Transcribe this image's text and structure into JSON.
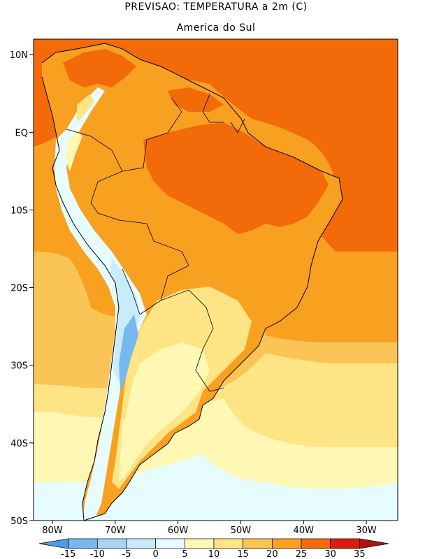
{
  "title": "PREVISAO: TEMPERATURA a 2m (C)",
  "subtitle": "America do Sul",
  "lat_labels": [
    {
      "lat": 10,
      "text": "10N"
    },
    {
      "lat": 0,
      "text": "EQ"
    },
    {
      "lat": -10,
      "text": "10S"
    },
    {
      "lat": -20,
      "text": "20S"
    },
    {
      "lat": -30,
      "text": "30S"
    },
    {
      "lat": -40,
      "text": "40S"
    },
    {
      "lat": -50,
      "text": "50S"
    }
  ],
  "lon_labels": [
    {
      "lon": -80,
      "text": "80W"
    },
    {
      "lon": -70,
      "text": "70W"
    },
    {
      "lon": -60,
      "text": "60W"
    },
    {
      "lon": -50,
      "text": "50W"
    },
    {
      "lon": -40,
      "text": "40W"
    },
    {
      "lon": -30,
      "text": "30W"
    }
  ],
  "colorbar": {
    "ticks": [
      "-15",
      "-10",
      "-5",
      "0",
      "5",
      "10",
      "15",
      "20",
      "25",
      "30",
      "35"
    ],
    "colors": [
      "#4a9be8",
      "#78b8f0",
      "#a8d4f4",
      "#c8ecfa",
      "#e6fcfe",
      "#fff8b4",
      "#fde484",
      "#fbc456",
      "#f8a020",
      "#f36a0a",
      "#dc1d0a",
      "#b2100a"
    ]
  }
}
